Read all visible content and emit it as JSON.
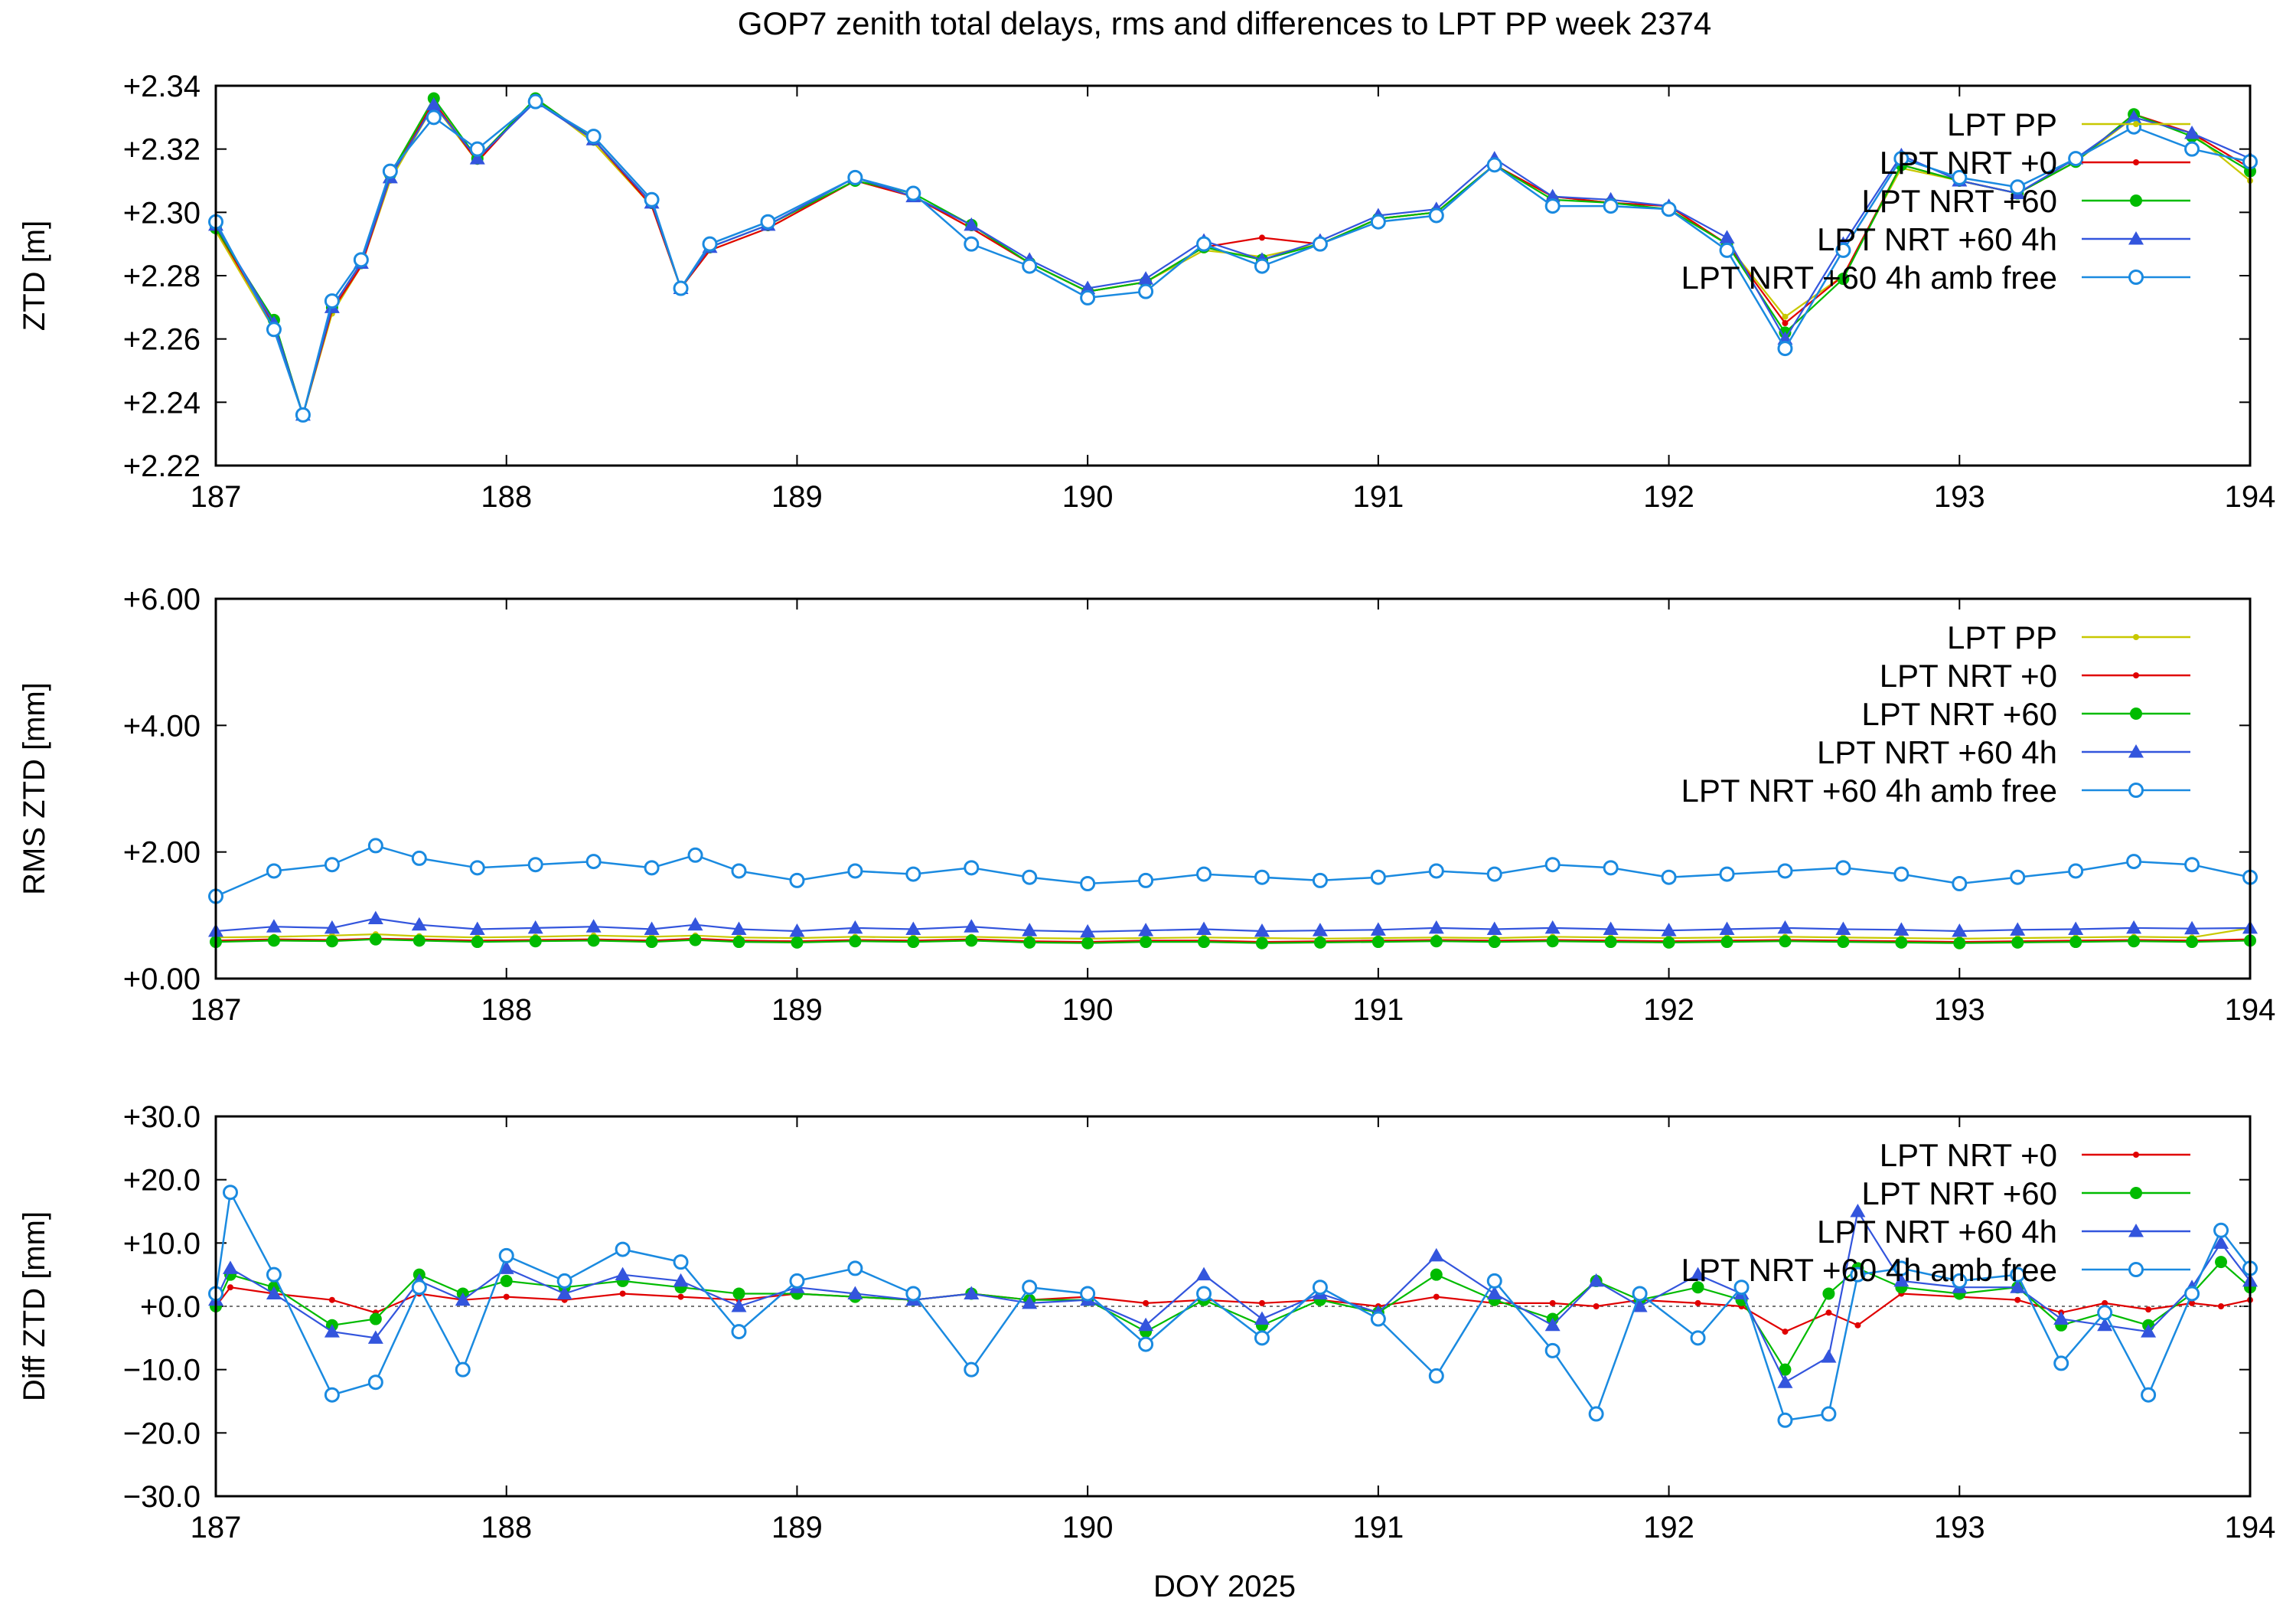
{
  "title": "GOP7 zenith total delays, rms and differences to LPT PP week 2374",
  "shared_xlabel": "DOY 2025",
  "series_styles": {
    "LPT PP": {
      "color": "#c8c800",
      "marker": "dot"
    },
    "LPT NRT +0": {
      "color": "#e00000",
      "marker": "dot"
    },
    "LPT NRT +60": {
      "color": "#00bb00",
      "marker": "disc"
    },
    "LPT NRT +60 4h": {
      "color": "#3355dd",
      "marker": "triangle"
    },
    "LPT NRT +60 4h amb free": {
      "color": "#1a8ae0",
      "marker": "ring"
    }
  },
  "chart_data": [
    {
      "type": "line",
      "ylabel": "ZTD [m]",
      "xlim": [
        187,
        194
      ],
      "ylim": [
        2.22,
        2.34
      ],
      "xticks": [
        "187",
        "188",
        "189",
        "190",
        "191",
        "192",
        "193",
        "194"
      ],
      "yticks": [
        "+2.22",
        "+2.24",
        "+2.26",
        "+2.28",
        "+2.30",
        "+2.32",
        "+2.34"
      ],
      "legend": [
        "LPT PP",
        "LPT NRT +0",
        "LPT NRT +60",
        "LPT NRT +60 4h",
        "LPT NRT +60 4h amb free"
      ],
      "legend_position": "top-right",
      "x": [
        187.0,
        187.2,
        187.3,
        187.4,
        187.5,
        187.6,
        187.75,
        187.9,
        188.1,
        188.3,
        188.5,
        188.6,
        188.7,
        188.9,
        189.2,
        189.4,
        189.6,
        189.8,
        190.0,
        190.2,
        190.4,
        190.6,
        190.8,
        191.0,
        191.2,
        191.4,
        191.6,
        191.8,
        192.0,
        192.2,
        192.4,
        192.6,
        192.8,
        193.0,
        193.2,
        193.4,
        193.6,
        193.8,
        194.0
      ],
      "series": [
        {
          "name": "LPT PP",
          "values": [
            2.294,
            2.263,
            2.236,
            2.268,
            2.283,
            2.31,
            2.334,
            2.316,
            2.336,
            2.322,
            2.302,
            2.276,
            2.288,
            2.295,
            2.31,
            2.305,
            2.295,
            2.284,
            2.275,
            2.278,
            2.288,
            2.286,
            2.29,
            2.298,
            2.3,
            2.315,
            2.305,
            2.303,
            2.302,
            2.29,
            2.267,
            2.28,
            2.314,
            2.31,
            2.306,
            2.316,
            2.33,
            2.325,
            2.31
          ]
        },
        {
          "name": "LPT NRT +0",
          "values": [
            2.295,
            2.264,
            2.236,
            2.269,
            2.283,
            2.311,
            2.335,
            2.316,
            2.336,
            2.323,
            2.302,
            2.276,
            2.288,
            2.295,
            2.31,
            2.305,
            2.295,
            2.284,
            2.275,
            2.278,
            2.289,
            2.292,
            2.29,
            2.298,
            2.3,
            2.315,
            2.305,
            2.303,
            2.302,
            2.29,
            2.265,
            2.28,
            2.315,
            2.31,
            2.306,
            2.316,
            2.331,
            2.325,
            2.314
          ]
        },
        {
          "name": "LPT NRT +60",
          "values": [
            2.295,
            2.266,
            2.236,
            2.27,
            2.284,
            2.312,
            2.336,
            2.317,
            2.336,
            2.323,
            2.303,
            2.276,
            2.289,
            2.296,
            2.31,
            2.306,
            2.296,
            2.284,
            2.275,
            2.278,
            2.289,
            2.285,
            2.29,
            2.298,
            2.3,
            2.315,
            2.304,
            2.303,
            2.301,
            2.29,
            2.262,
            2.279,
            2.315,
            2.31,
            2.306,
            2.316,
            2.331,
            2.324,
            2.313
          ]
        },
        {
          "name": "LPT NRT +60 4h",
          "values": [
            2.296,
            2.265,
            2.236,
            2.27,
            2.284,
            2.311,
            2.334,
            2.317,
            2.335,
            2.323,
            2.303,
            2.276,
            2.289,
            2.296,
            2.311,
            2.305,
            2.296,
            2.285,
            2.276,
            2.279,
            2.291,
            2.285,
            2.291,
            2.299,
            2.301,
            2.317,
            2.305,
            2.304,
            2.302,
            2.292,
            2.26,
            2.29,
            2.318,
            2.31,
            2.306,
            2.317,
            2.33,
            2.325,
            2.317
          ]
        },
        {
          "name": "LPT NRT +60 4h amb free",
          "values": [
            2.297,
            2.263,
            2.236,
            2.272,
            2.285,
            2.313,
            2.33,
            2.32,
            2.335,
            2.324,
            2.304,
            2.276,
            2.29,
            2.297,
            2.311,
            2.306,
            2.29,
            2.283,
            2.273,
            2.275,
            2.29,
            2.283,
            2.29,
            2.297,
            2.299,
            2.315,
            2.302,
            2.302,
            2.301,
            2.288,
            2.257,
            2.288,
            2.317,
            2.311,
            2.308,
            2.317,
            2.327,
            2.32,
            2.316
          ]
        }
      ]
    },
    {
      "type": "line",
      "ylabel": "RMS ZTD [mm]",
      "xlim": [
        187,
        194
      ],
      "ylim": [
        0,
        6
      ],
      "xticks": [
        "187",
        "188",
        "189",
        "190",
        "191",
        "192",
        "193",
        "194"
      ],
      "yticks": [
        "+0.00",
        "+2.00",
        "+4.00",
        "+6.00"
      ],
      "legend": [
        "LPT PP",
        "LPT NRT +0",
        "LPT NRT +60",
        "LPT NRT +60 4h",
        "LPT NRT +60 4h amb free"
      ],
      "legend_position": "top-right",
      "x": [
        187.0,
        187.2,
        187.4,
        187.55,
        187.7,
        187.9,
        188.1,
        188.3,
        188.5,
        188.65,
        188.8,
        189.0,
        189.2,
        189.4,
        189.6,
        189.8,
        190.0,
        190.2,
        190.4,
        190.6,
        190.8,
        191.0,
        191.2,
        191.4,
        191.6,
        191.8,
        192.0,
        192.2,
        192.4,
        192.6,
        192.8,
        193.0,
        193.2,
        193.4,
        193.6,
        193.8,
        194.0
      ],
      "series": [
        {
          "name": "LPT PP",
          "values": [
            0.65,
            0.66,
            0.68,
            0.7,
            0.67,
            0.65,
            0.66,
            0.68,
            0.66,
            0.68,
            0.65,
            0.64,
            0.66,
            0.65,
            0.66,
            0.64,
            0.63,
            0.64,
            0.65,
            0.64,
            0.63,
            0.64,
            0.65,
            0.64,
            0.66,
            0.65,
            0.64,
            0.65,
            0.66,
            0.65,
            0.64,
            0.63,
            0.64,
            0.65,
            0.66,
            0.65,
            0.8
          ]
        },
        {
          "name": "LPT NRT +0",
          "values": [
            0.6,
            0.62,
            0.61,
            0.63,
            0.62,
            0.6,
            0.61,
            0.62,
            0.6,
            0.63,
            0.6,
            0.59,
            0.61,
            0.6,
            0.62,
            0.59,
            0.58,
            0.6,
            0.6,
            0.58,
            0.59,
            0.6,
            0.61,
            0.6,
            0.61,
            0.6,
            0.59,
            0.6,
            0.61,
            0.6,
            0.59,
            0.58,
            0.59,
            0.6,
            0.61,
            0.6,
            0.62
          ]
        },
        {
          "name": "LPT NRT +60",
          "values": [
            0.58,
            0.6,
            0.59,
            0.62,
            0.6,
            0.58,
            0.59,
            0.6,
            0.58,
            0.61,
            0.58,
            0.57,
            0.59,
            0.58,
            0.6,
            0.57,
            0.56,
            0.58,
            0.58,
            0.56,
            0.57,
            0.58,
            0.59,
            0.58,
            0.59,
            0.58,
            0.57,
            0.58,
            0.59,
            0.58,
            0.57,
            0.56,
            0.57,
            0.58,
            0.59,
            0.58,
            0.6
          ]
        },
        {
          "name": "LPT NRT +60 4h",
          "values": [
            0.75,
            0.82,
            0.8,
            0.95,
            0.85,
            0.78,
            0.8,
            0.82,
            0.78,
            0.85,
            0.78,
            0.75,
            0.8,
            0.78,
            0.82,
            0.76,
            0.74,
            0.76,
            0.78,
            0.75,
            0.76,
            0.77,
            0.8,
            0.78,
            0.8,
            0.78,
            0.76,
            0.78,
            0.8,
            0.78,
            0.77,
            0.75,
            0.77,
            0.78,
            0.8,
            0.79,
            0.8
          ]
        },
        {
          "name": "LPT NRT +60 4h amb free",
          "values": [
            1.3,
            1.7,
            1.8,
            2.1,
            1.9,
            1.75,
            1.8,
            1.85,
            1.75,
            1.95,
            1.7,
            1.55,
            1.7,
            1.65,
            1.75,
            1.6,
            1.5,
            1.55,
            1.65,
            1.6,
            1.55,
            1.6,
            1.7,
            1.65,
            1.8,
            1.75,
            1.6,
            1.65,
            1.7,
            1.75,
            1.65,
            1.5,
            1.6,
            1.7,
            1.85,
            1.8,
            1.6
          ]
        }
      ]
    },
    {
      "type": "line",
      "ylabel": "Diff ZTD [mm]",
      "xlabel": "DOY 2025",
      "xlim": [
        187,
        194
      ],
      "ylim": [
        -30,
        30
      ],
      "xticks": [
        "187",
        "188",
        "189",
        "190",
        "191",
        "192",
        "193",
        "194"
      ],
      "yticks": [
        "−30.0",
        "−20.0",
        "−10.0",
        "+0.0",
        "+10.0",
        "+20.0",
        "+30.0"
      ],
      "legend": [
        "LPT NRT +0",
        "LPT NRT +60",
        "LPT NRT +60 4h",
        "LPT NRT +60 4h amb free"
      ],
      "legend_position": "top-right",
      "zero_line": true,
      "x": [
        187.0,
        187.05,
        187.2,
        187.4,
        187.55,
        187.7,
        187.85,
        188.0,
        188.2,
        188.4,
        188.6,
        188.8,
        189.0,
        189.2,
        189.4,
        189.6,
        189.8,
        190.0,
        190.2,
        190.4,
        190.6,
        190.8,
        191.0,
        191.2,
        191.4,
        191.6,
        191.75,
        191.9,
        192.1,
        192.25,
        192.4,
        192.55,
        192.65,
        192.8,
        193.0,
        193.2,
        193.35,
        193.5,
        193.65,
        193.8,
        193.9,
        194.0
      ],
      "series": [
        {
          "name": "LPT NRT +0",
          "values": [
            0.0,
            3.0,
            2.0,
            1.0,
            -1.0,
            2.0,
            1.0,
            1.5,
            1.0,
            2.0,
            1.5,
            1.0,
            2.0,
            1.5,
            1.0,
            2.0,
            1.0,
            1.5,
            0.5,
            1.0,
            0.5,
            1.0,
            0.0,
            1.5,
            0.5,
            0.5,
            0.0,
            1.0,
            0.5,
            0.0,
            -4.0,
            -1.0,
            -3.0,
            2.0,
            1.5,
            1.0,
            -1.0,
            0.5,
            -0.5,
            0.5,
            0.0,
            1.0
          ]
        },
        {
          "name": "LPT NRT +60",
          "values": [
            0.0,
            5.0,
            3.0,
            -3.0,
            -2.0,
            5.0,
            2.0,
            4.0,
            3.0,
            4.0,
            3.0,
            2.0,
            2.0,
            1.5,
            1.0,
            2.0,
            1.0,
            1.0,
            -4.0,
            1.0,
            -3.0,
            1.0,
            -1.0,
            5.0,
            1.0,
            -2.0,
            4.0,
            1.0,
            3.0,
            1.0,
            -10.0,
            2.0,
            6.0,
            3.0,
            2.0,
            3.0,
            -3.0,
            -1.0,
            -3.0,
            2.0,
            7.0,
            3.0
          ]
        },
        {
          "name": "LPT NRT +60 4h",
          "values": [
            1.0,
            6.0,
            2.0,
            -4.0,
            -5.0,
            4.0,
            1.0,
            6.0,
            2.0,
            5.0,
            4.0,
            0.0,
            3.0,
            2.0,
            1.0,
            2.0,
            0.5,
            1.0,
            -3.0,
            5.0,
            -2.0,
            2.0,
            -1.0,
            8.0,
            2.0,
            -3.0,
            4.0,
            0.0,
            5.0,
            2.0,
            -12.0,
            -8.0,
            15.0,
            4.0,
            3.0,
            3.0,
            -2.0,
            -3.0,
            -4.0,
            3.0,
            10.0,
            4.0
          ]
        },
        {
          "name": "LPT NRT +60 4h amb free",
          "values": [
            2.0,
            18.0,
            5.0,
            -14.0,
            -12.0,
            3.0,
            -10.0,
            8.0,
            4.0,
            9.0,
            7.0,
            -4.0,
            4.0,
            6.0,
            2.0,
            -10.0,
            3.0,
            2.0,
            -6.0,
            2.0,
            -5.0,
            3.0,
            -2.0,
            -11.0,
            4.0,
            -7.0,
            -17.0,
            2.0,
            -5.0,
            3.0,
            -18.0,
            -17.0,
            5.0,
            6.0,
            4.0,
            5.0,
            -9.0,
            -1.0,
            -14.0,
            2.0,
            12.0,
            6.0
          ]
        }
      ]
    }
  ]
}
